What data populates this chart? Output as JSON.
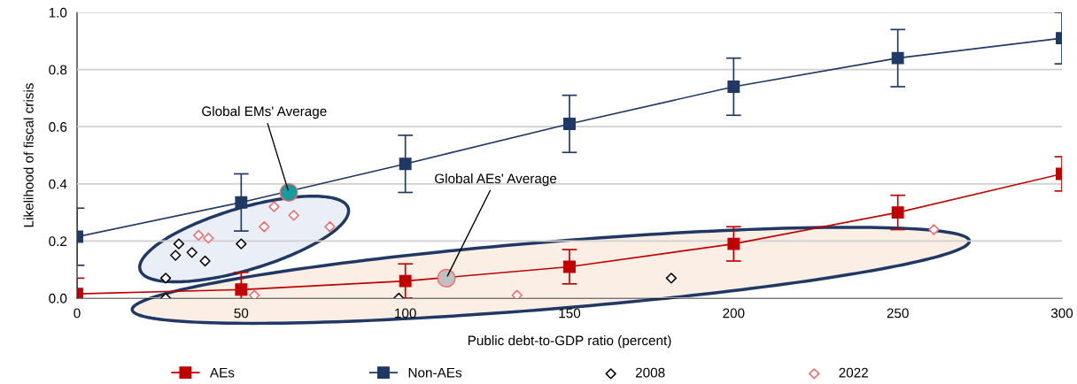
{
  "chart_data": {
    "type": "line",
    "xlabel": "Public debt-to-GDP ratio (percent)",
    "ylabel": "Likelihood of fiscal crisis",
    "x": [
      0,
      50,
      100,
      150,
      200,
      250,
      300
    ],
    "series": [
      {
        "name": "AEs",
        "color": "#c00000",
        "marker": "square",
        "values": [
          0.015,
          0.03,
          0.06,
          0.11,
          0.19,
          0.3,
          0.435
        ],
        "errors": [
          0.055,
          0.06,
          0.06,
          0.06,
          0.06,
          0.06,
          0.06
        ]
      },
      {
        "name": "Non-AEs",
        "color": "#1f3864",
        "marker": "square",
        "values": [
          0.215,
          0.335,
          0.47,
          0.61,
          0.74,
          0.84,
          0.91
        ],
        "errors": [
          0.1,
          0.1,
          0.1,
          0.1,
          0.1,
          0.1,
          0.09
        ]
      },
      {
        "name": "2008",
        "type": "scatter",
        "color": "#000000",
        "marker": "diamond",
        "x": [
          31,
          30,
          35,
          39,
          27,
          27,
          50,
          98,
          181
        ],
        "values": [
          0.19,
          0.15,
          0.16,
          0.13,
          0.07,
          0.0,
          0.19,
          0.0,
          0.07
        ]
      },
      {
        "name": "2022",
        "type": "scatter",
        "color": "#f4676a",
        "marker": "diamond",
        "x": [
          37,
          40,
          54,
          57,
          60,
          66,
          77,
          134,
          261
        ],
        "values": [
          0.22,
          0.21,
          0.01,
          0.25,
          0.32,
          0.29,
          0.25,
          0.01,
          0.24
        ]
      },
      {
        "type": "scatter",
        "color": "#1a9a9a",
        "marker": "circle",
        "x": [
          64.5
        ],
        "values": [
          0.37
        ]
      },
      {
        "type": "scatter",
        "color": "#c0c0c0",
        "marker": "circle",
        "x": [
          112.5
        ],
        "values": [
          0.07
        ]
      }
    ],
    "annotations": [
      {
        "text": "Global EMs' Average",
        "x": 64.5,
        "y": 0.37
      },
      {
        "text": "Global AEs' Average",
        "x": 112.5,
        "y": 0.07
      }
    ],
    "xlim": [
      0,
      300
    ],
    "xticks": [
      0,
      50,
      100,
      150,
      200,
      250,
      300
    ],
    "ylim": [
      0,
      1
    ],
    "yticks": [
      {
        "value": 0,
        "label": "0.0"
      },
      {
        "value": 0.2,
        "label": "0.2"
      },
      {
        "value": 0.4,
        "label": "0.4"
      },
      {
        "value": 0.6,
        "label": "0.6"
      },
      {
        "value": 0.8,
        "label": "0.8"
      },
      {
        "value": 1,
        "label": "1.0"
      }
    ],
    "grid": "y",
    "legend": "bottom"
  }
}
